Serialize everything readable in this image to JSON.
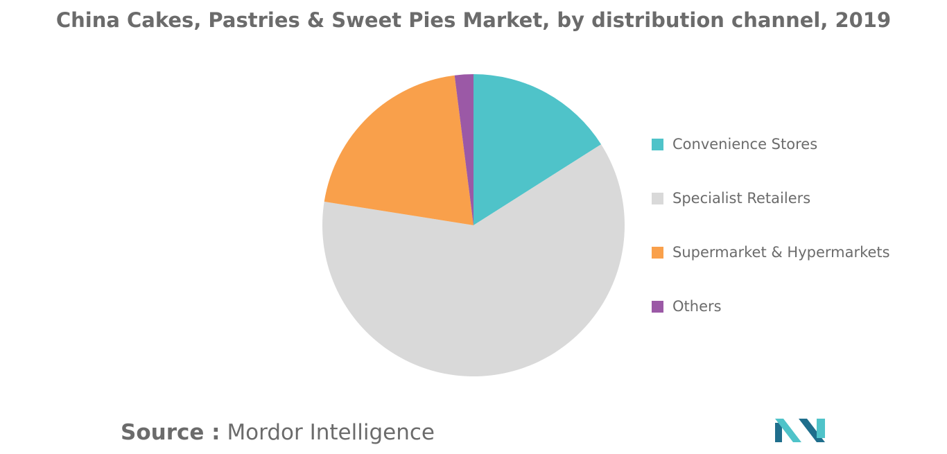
{
  "chart_data": {
    "type": "pie",
    "title": "China Cakes, Pastries & Sweet Pies Market, by distribution channel, 2019",
    "slices": [
      {
        "label": "Convenience Stores",
        "value": 16,
        "color": "#4fc3c9"
      },
      {
        "label": "Specialist Retailers",
        "value": 61.5,
        "color": "#d9d9d9"
      },
      {
        "label": "Supermarket & Hypermarkets",
        "value": 20.5,
        "color": "#f9a04b"
      },
      {
        "label": "Others",
        "value": 2,
        "color": "#9b59a6"
      }
    ],
    "start_angle": "12 o'clock",
    "direction": "clockwise",
    "legend_position": "right"
  },
  "source": {
    "label": "Source :",
    "value": "Mordor Intelligence"
  },
  "logo": {
    "name": "mordor-intelligence-logo",
    "colors": [
      "#1f6e8c",
      "#4fc3c9"
    ]
  }
}
